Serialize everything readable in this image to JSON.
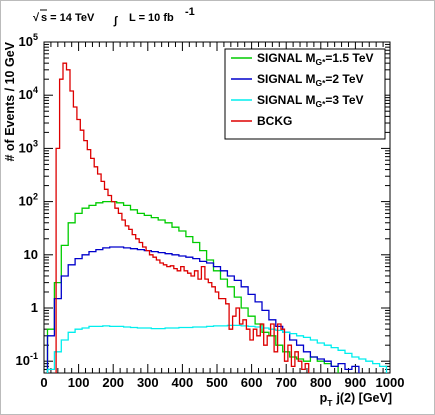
{
  "annotation": {
    "sqrt_symbol": "√",
    "energy_text": "s = 14 TeV",
    "integral_symbol": "∫",
    "lumi_text": "L = 10 fb",
    "lumi_sup": "-1"
  },
  "chart_data": {
    "type": "line",
    "step": true,
    "xlabel_main": "p",
    "xlabel_sub": "T",
    "xlabel_rest": "j(2) [GeV]",
    "ylabel": "# of Events / 10 GeV",
    "xlim": [
      0,
      1000
    ],
    "ylim": [
      0.06,
      100000
    ],
    "yscale": "log",
    "grid": false,
    "legend_position": "top-right",
    "x_ticks": [
      0,
      100,
      200,
      300,
      400,
      500,
      600,
      700,
      800,
      900,
      1000
    ],
    "x_tick_labels": [
      "0",
      "100",
      "200",
      "300",
      "400",
      "500",
      "600",
      "700",
      "800",
      "900",
      "1000"
    ],
    "y_ticks": [
      {
        "value": 0.1,
        "base": "10",
        "exp": "-1"
      },
      {
        "value": 1,
        "base": "1",
        "exp": ""
      },
      {
        "value": 10,
        "base": "10",
        "exp": ""
      },
      {
        "value": 100,
        "base": "10",
        "exp": "2"
      },
      {
        "value": 1000,
        "base": "10",
        "exp": "3"
      },
      {
        "value": 10000,
        "base": "10",
        "exp": "4"
      },
      {
        "value": 100000,
        "base": "10",
        "exp": "5"
      }
    ],
    "series": [
      {
        "label_main": "SIGNAL M",
        "label_sub": "G*",
        "label_rest": "=1.5 TeV",
        "color": "#00cc00",
        "x": [
          20,
          40,
          60,
          80,
          100,
          120,
          140,
          160,
          180,
          200,
          220,
          240,
          260,
          280,
          300,
          320,
          340,
          360,
          380,
          400,
          420,
          440,
          460,
          480,
          500,
          520,
          540,
          560,
          580,
          600,
          620,
          640,
          660,
          680,
          700,
          720,
          740,
          760,
          780,
          800,
          820,
          840
        ],
        "y": [
          0.4,
          3,
          15,
          40,
          60,
          75,
          85,
          95,
          100,
          100,
          95,
          85,
          70,
          60,
          55,
          50,
          45,
          40,
          33,
          28,
          22,
          17,
          12,
          8,
          5,
          3.5,
          2.5,
          1.6,
          1,
          0.7,
          0.5,
          0.35,
          0.3,
          0.2,
          0.15,
          0.12,
          0.11,
          0.1,
          0.12,
          0.1,
          0.09,
          0.08
        ]
      },
      {
        "label_main": "SIGNAL M",
        "label_sub": "G*",
        "label_rest": "=2 TeV",
        "color": "#0000cc",
        "x": [
          20,
          40,
          60,
          80,
          100,
          120,
          140,
          160,
          180,
          200,
          220,
          240,
          260,
          280,
          300,
          320,
          340,
          360,
          380,
          400,
          420,
          440,
          460,
          480,
          500,
          520,
          540,
          560,
          580,
          600,
          620,
          640,
          660,
          680,
          700,
          720,
          740,
          760,
          780,
          800,
          820,
          840,
          860,
          880,
          900
        ],
        "y": [
          0.3,
          1.5,
          4,
          6.5,
          8.5,
          10,
          11.5,
          12.5,
          13.5,
          14,
          14,
          13.5,
          13,
          12.5,
          12,
          11.5,
          11,
          10.5,
          10,
          9.5,
          9,
          8.5,
          7.5,
          7,
          6,
          5,
          4,
          3.3,
          2.5,
          1.8,
          1.3,
          0.9,
          0.6,
          0.45,
          0.35,
          0.25,
          0.2,
          0.15,
          0.12,
          0.11,
          0.1,
          0.08,
          0.09,
          0.07,
          0.08
        ]
      },
      {
        "label_main": "SIGNAL M",
        "label_sub": "G*",
        "label_rest": "=3 TeV",
        "color": "#00eeee",
        "x": [
          20,
          40,
          60,
          80,
          100,
          120,
          140,
          160,
          180,
          200,
          220,
          240,
          260,
          280,
          300,
          320,
          340,
          360,
          380,
          400,
          420,
          440,
          460,
          480,
          500,
          520,
          540,
          560,
          580,
          600,
          620,
          640,
          660,
          680,
          700,
          720,
          740,
          760,
          780,
          800,
          820,
          840,
          860,
          880,
          900,
          920,
          940,
          960,
          980
        ],
        "y": [
          0.07,
          0.15,
          0.25,
          0.35,
          0.4,
          0.42,
          0.45,
          0.45,
          0.46,
          0.45,
          0.45,
          0.44,
          0.43,
          0.42,
          0.42,
          0.41,
          0.41,
          0.42,
          0.42,
          0.43,
          0.43,
          0.44,
          0.44,
          0.45,
          0.46,
          0.46,
          0.47,
          0.47,
          0.46,
          0.45,
          0.44,
          0.42,
          0.4,
          0.38,
          0.35,
          0.33,
          0.3,
          0.28,
          0.25,
          0.22,
          0.2,
          0.18,
          0.16,
          0.14,
          0.12,
          0.11,
          0.1,
          0.09,
          0.08
        ]
      },
      {
        "label_main": "BCKG",
        "label_sub": "",
        "label_rest": "",
        "color": "#dd0000",
        "x": [
          40,
          50,
          60,
          70,
          80,
          90,
          100,
          110,
          120,
          130,
          140,
          150,
          160,
          170,
          180,
          190,
          200,
          210,
          220,
          230,
          240,
          250,
          260,
          270,
          280,
          290,
          300,
          310,
          320,
          330,
          340,
          350,
          360,
          370,
          380,
          390,
          400,
          410,
          420,
          430,
          440,
          450,
          460,
          470,
          480,
          490,
          500,
          510,
          520,
          530,
          540,
          550,
          560,
          570,
          580,
          590,
          600,
          610,
          620,
          630,
          640,
          650,
          660,
          670,
          680,
          690,
          700,
          710,
          720,
          730,
          740,
          750,
          760
        ],
        "y": [
          1000,
          20000,
          40000,
          30000,
          12000,
          6000,
          3500,
          2200,
          1400,
          950,
          650,
          450,
          330,
          240,
          170,
          130,
          100,
          75,
          60,
          45,
          35,
          30,
          24,
          20,
          17,
          14,
          12,
          10,
          9,
          8,
          7,
          6.5,
          6,
          6.2,
          5.5,
          5,
          6,
          5,
          4.5,
          4,
          5,
          3.5,
          6,
          3.5,
          3,
          2.5,
          2,
          1.5,
          1.5,
          1.2,
          0.4,
          0.7,
          1,
          0.5,
          0.6,
          0.4,
          0.25,
          0.4,
          0.3,
          0.5,
          0.2,
          0.3,
          0.5,
          0.15,
          0.5,
          0.4,
          0.1,
          0.2,
          0.08,
          0.15,
          0.1,
          0.07,
          0.09
        ]
      }
    ]
  }
}
